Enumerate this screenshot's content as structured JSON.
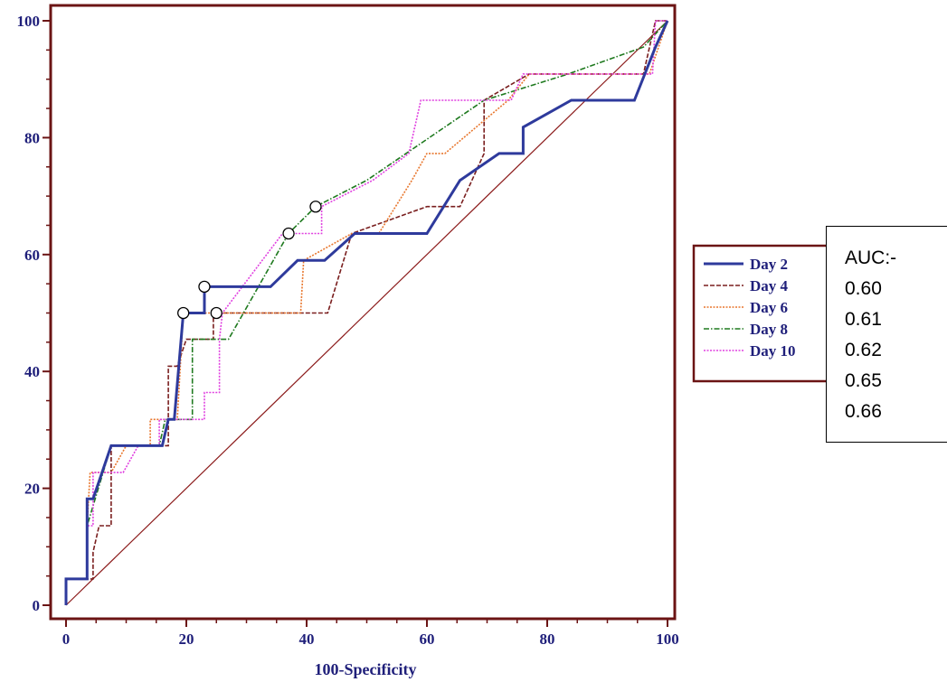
{
  "chart_data": {
    "type": "line",
    "xlabel": "100-Specificity",
    "ylabel": "",
    "xlim": [
      0,
      100
    ],
    "ylim": [
      0,
      100
    ],
    "x_ticks": [
      0,
      20,
      40,
      60,
      80,
      100
    ],
    "y_ticks": [
      0,
      20,
      40,
      60,
      80,
      100
    ],
    "grid": false,
    "legend_position": "right",
    "series": [
      {
        "name": "Day 2",
        "color": "#2e3a9c",
        "style": "solid-thick",
        "points": [
          [
            0,
            0
          ],
          [
            0,
            4.5
          ],
          [
            3.5,
            4.5
          ],
          [
            3.5,
            18.2
          ],
          [
            4.5,
            18.2
          ],
          [
            7.5,
            27.3
          ],
          [
            16,
            27.3
          ],
          [
            17,
            31.8
          ],
          [
            18,
            31.8
          ],
          [
            19.5,
            50
          ],
          [
            23,
            50
          ],
          [
            23,
            54.5
          ],
          [
            34,
            54.5
          ],
          [
            38.5,
            59
          ],
          [
            43,
            59
          ],
          [
            48,
            63.6
          ],
          [
            60,
            63.6
          ],
          [
            65.5,
            72.7
          ],
          [
            72,
            77.3
          ],
          [
            76,
            77.3
          ],
          [
            76,
            81.8
          ],
          [
            84,
            86.4
          ],
          [
            94.5,
            86.4
          ],
          [
            98,
            95.5
          ],
          [
            100,
            100
          ]
        ],
        "marker": [
          23,
          54.5
        ]
      },
      {
        "name": "Day 4",
        "color": "#7a1f1f",
        "style": "dashed",
        "points": [
          [
            0,
            0
          ],
          [
            0,
            4.5
          ],
          [
            4.5,
            4.5
          ],
          [
            4.5,
            9.1
          ],
          [
            5.5,
            13.6
          ],
          [
            7.5,
            13.6
          ],
          [
            7.5,
            27.3
          ],
          [
            17,
            27.3
          ],
          [
            17,
            40.9
          ],
          [
            18.5,
            40.9
          ],
          [
            20,
            45.5
          ],
          [
            24.5,
            45.5
          ],
          [
            24.5,
            50
          ],
          [
            43.5,
            50
          ],
          [
            47.5,
            63.6
          ],
          [
            60,
            68.2
          ],
          [
            65.5,
            68.2
          ],
          [
            69.5,
            77.3
          ],
          [
            69.5,
            86.4
          ],
          [
            77,
            90.9
          ],
          [
            96,
            90.9
          ],
          [
            98,
            100
          ],
          [
            100,
            100
          ]
        ]
      },
      {
        "name": "Day 6",
        "color": "#e8772e",
        "style": "dotted",
        "points": [
          [
            0,
            0
          ],
          [
            0,
            4.5
          ],
          [
            3.5,
            4.5
          ],
          [
            3.5,
            13.6
          ],
          [
            4,
            22.7
          ],
          [
            7.5,
            22.7
          ],
          [
            10,
            27.3
          ],
          [
            14,
            27.3
          ],
          [
            14,
            31.8
          ],
          [
            18.5,
            31.8
          ],
          [
            19.5,
            50
          ],
          [
            39,
            50
          ],
          [
            39.5,
            59
          ],
          [
            47.5,
            63.6
          ],
          [
            52,
            63.6
          ],
          [
            57.5,
            72.7
          ],
          [
            60,
            77.3
          ],
          [
            63,
            77.3
          ],
          [
            73.5,
            86.4
          ],
          [
            77,
            90.9
          ],
          [
            97,
            90.9
          ],
          [
            100,
            100
          ]
        ],
        "marker": [
          25,
          50
        ]
      },
      {
        "name": "Day 8",
        "color": "#1f7a1f",
        "style": "dashdot",
        "points": [
          [
            0,
            0
          ],
          [
            0,
            4.5
          ],
          [
            3.5,
            4.5
          ],
          [
            3.5,
            13.6
          ],
          [
            7.5,
            27.3
          ],
          [
            15.5,
            27.3
          ],
          [
            16.5,
            31.8
          ],
          [
            21,
            31.8
          ],
          [
            21,
            45.5
          ],
          [
            27,
            45.5
          ],
          [
            29.5,
            50
          ],
          [
            37,
            63.6
          ],
          [
            41.5,
            68.2
          ],
          [
            50,
            72.7
          ],
          [
            69.5,
            86.4
          ],
          [
            83.5,
            90.9
          ],
          [
            96,
            95.5
          ],
          [
            100,
            100
          ]
        ],
        "marker": [
          37,
          63.6
        ]
      },
      {
        "name": "Day 10",
        "color": "#e040e0",
        "style": "dotted",
        "points": [
          [
            0,
            0
          ],
          [
            0,
            4.5
          ],
          [
            3.5,
            4.5
          ],
          [
            3.5,
            13.6
          ],
          [
            4.5,
            13.6
          ],
          [
            4.5,
            22.7
          ],
          [
            9.5,
            22.7
          ],
          [
            12,
            27.3
          ],
          [
            15.5,
            27.3
          ],
          [
            15.5,
            31.8
          ],
          [
            23,
            31.8
          ],
          [
            23,
            36.4
          ],
          [
            25.5,
            36.4
          ],
          [
            25.5,
            45.5
          ],
          [
            26,
            50
          ],
          [
            36,
            63.6
          ],
          [
            42.5,
            63.6
          ],
          [
            42.5,
            68.2
          ],
          [
            51,
            72.7
          ],
          [
            57,
            77.3
          ],
          [
            59,
            86.4
          ],
          [
            74,
            86.4
          ],
          [
            76,
            90.9
          ],
          [
            97.5,
            90.9
          ],
          [
            98,
            100
          ],
          [
            100,
            100
          ]
        ],
        "marker": [
          41.5,
          68.2
        ]
      }
    ],
    "reference_line": {
      "points": [
        [
          0,
          0
        ],
        [
          100,
          100
        ]
      ],
      "color": "#8b1a1a"
    },
    "extra_markers": [
      [
        19.5,
        50
      ]
    ]
  },
  "auc_box": {
    "title": "AUC:-",
    "values": [
      "0.60",
      "0.61",
      "0.62",
      "0.65",
      "0.66"
    ]
  }
}
